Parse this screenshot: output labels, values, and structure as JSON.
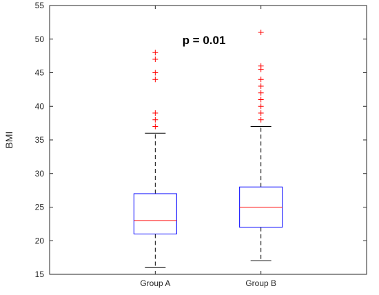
{
  "chart_data": {
    "type": "box",
    "ylabel": "BMI",
    "xlabel": "",
    "ylim": [
      15,
      55
    ],
    "y_ticks": [
      15,
      20,
      25,
      30,
      35,
      40,
      45,
      50,
      55
    ],
    "categories": [
      "Group A",
      "Group B"
    ],
    "annotation": "p = 0.01",
    "grid": false,
    "boxes": [
      {
        "category": "Group A",
        "whisker_low": 16,
        "q1": 21,
        "median": 23,
        "q3": 27,
        "whisker_high": 36,
        "outliers": [
          37,
          38,
          39,
          44,
          45,
          47,
          48
        ]
      },
      {
        "category": "Group B",
        "whisker_low": 17,
        "q1": 22,
        "median": 25,
        "q3": 28,
        "whisker_high": 37,
        "outliers": [
          38,
          39,
          40,
          41,
          42,
          43,
          44,
          45.5,
          46,
          51
        ]
      }
    ],
    "colors": {
      "box": "#0000ff",
      "median": "#ff0000",
      "whisker": "#000000",
      "outlier": "#ff0000",
      "axes": "#262626"
    }
  }
}
